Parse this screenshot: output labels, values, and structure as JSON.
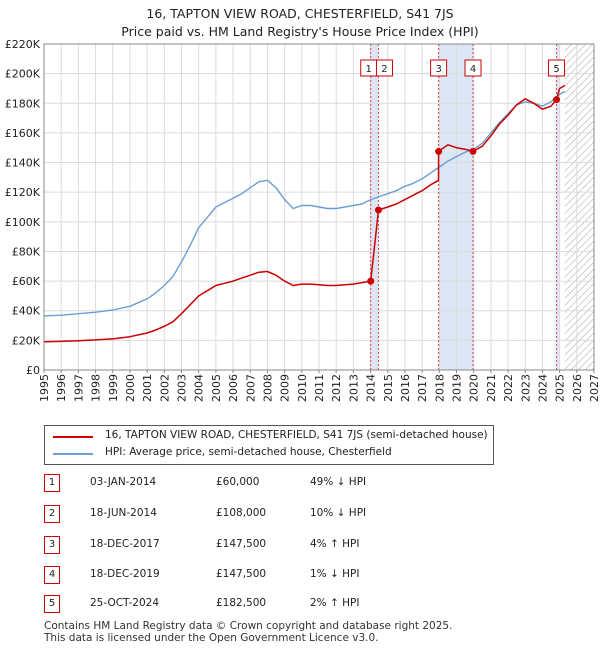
{
  "title_line1": "16, TAPTON VIEW ROAD, CHESTERFIELD, S41 7JS",
  "title_line2": "Price paid vs. HM Land Registry's House Price Index (HPI)",
  "chart_data": {
    "type": "line",
    "title": "16, TAPTON VIEW ROAD, CHESTERFIELD, S41 7JS — Price paid vs. HM Land Registry's House Price Index (HPI)",
    "xlim": [
      1995,
      2027
    ],
    "ylim": [
      0,
      220000
    ],
    "x_ticks": [
      1995,
      1996,
      1997,
      1998,
      1999,
      2000,
      2001,
      2002,
      2003,
      2004,
      2005,
      2006,
      2007,
      2008,
      2009,
      2010,
      2011,
      2012,
      2013,
      2014,
      2015,
      2016,
      2017,
      2018,
      2019,
      2020,
      2021,
      2022,
      2023,
      2024,
      2025,
      2026,
      2027
    ],
    "y_ticks": [
      0,
      20000,
      40000,
      60000,
      80000,
      100000,
      120000,
      140000,
      160000,
      180000,
      200000,
      220000
    ],
    "y_tick_labels": [
      "£0",
      "£20K",
      "£40K",
      "£60K",
      "£80K",
      "£100K",
      "£120K",
      "£140K",
      "£160K",
      "£180K",
      "£200K",
      "£220K"
    ],
    "grid": true,
    "colors": {
      "hpi": "#6a9ed4",
      "price": "#cc0000",
      "shade": "#dce6f5",
      "future_hatch": "#b0b0b0"
    },
    "shaded_ranges": [
      [
        2014.0,
        2014.46
      ],
      [
        2017.96,
        2019.96
      ],
      [
        2024.82,
        2025.0
      ]
    ],
    "future_from": 2025.3,
    "series": [
      {
        "name": "HPI: Average price, semi-detached house, Chesterfield",
        "points": [
          [
            1995.0,
            36500
          ],
          [
            1996.0,
            37000
          ],
          [
            1997.0,
            38000
          ],
          [
            1998.0,
            39000
          ],
          [
            1999.0,
            40500
          ],
          [
            2000.0,
            43000
          ],
          [
            2001.0,
            48000
          ],
          [
            2001.5,
            52000
          ],
          [
            2002.0,
            57000
          ],
          [
            2002.5,
            63000
          ],
          [
            2003.0,
            73000
          ],
          [
            2003.5,
            84000
          ],
          [
            2004.0,
            96000
          ],
          [
            2004.5,
            103000
          ],
          [
            2005.0,
            110000
          ],
          [
            2005.5,
            113000
          ],
          [
            2006.0,
            116000
          ],
          [
            2006.5,
            119000
          ],
          [
            2007.0,
            123000
          ],
          [
            2007.5,
            127000
          ],
          [
            2008.0,
            128000
          ],
          [
            2008.5,
            123000
          ],
          [
            2009.0,
            115000
          ],
          [
            2009.5,
            109000
          ],
          [
            2010.0,
            111000
          ],
          [
            2010.5,
            111000
          ],
          [
            2011.0,
            110000
          ],
          [
            2011.5,
            109000
          ],
          [
            2012.0,
            109000
          ],
          [
            2012.5,
            110000
          ],
          [
            2013.0,
            111000
          ],
          [
            2013.5,
            112000
          ],
          [
            2014.0,
            115000
          ],
          [
            2014.5,
            117000
          ],
          [
            2015.0,
            119000
          ],
          [
            2015.5,
            121000
          ],
          [
            2016.0,
            124000
          ],
          [
            2016.5,
            126000
          ],
          [
            2017.0,
            129000
          ],
          [
            2017.5,
            133000
          ],
          [
            2018.0,
            137000
          ],
          [
            2018.5,
            141000
          ],
          [
            2019.0,
            144000
          ],
          [
            2019.5,
            147000
          ],
          [
            2020.0,
            149000
          ],
          [
            2020.5,
            153000
          ],
          [
            2021.0,
            160000
          ],
          [
            2021.5,
            167000
          ],
          [
            2022.0,
            173000
          ],
          [
            2022.5,
            179000
          ],
          [
            2023.0,
            181000
          ],
          [
            2023.5,
            180000
          ],
          [
            2024.0,
            178000
          ],
          [
            2024.5,
            181000
          ],
          [
            2025.0,
            186000
          ],
          [
            2025.3,
            188000
          ]
        ]
      },
      {
        "name": "16, TAPTON VIEW ROAD, CHESTERFIELD, S41 7JS (semi-detached house)",
        "points": [
          [
            1995.0,
            19000
          ],
          [
            1996.0,
            19300
          ],
          [
            1997.0,
            19800
          ],
          [
            1998.0,
            20300
          ],
          [
            1999.0,
            21000
          ],
          [
            2000.0,
            22500
          ],
          [
            2001.0,
            25000
          ],
          [
            2001.5,
            27000
          ],
          [
            2002.0,
            29500
          ],
          [
            2002.5,
            32500
          ],
          [
            2003.0,
            38000
          ],
          [
            2003.5,
            44000
          ],
          [
            2004.0,
            50000
          ],
          [
            2004.5,
            53500
          ],
          [
            2005.0,
            57000
          ],
          [
            2005.5,
            58500
          ],
          [
            2006.0,
            60000
          ],
          [
            2006.5,
            62000
          ],
          [
            2007.0,
            64000
          ],
          [
            2007.5,
            66000
          ],
          [
            2008.0,
            66500
          ],
          [
            2008.5,
            64000
          ],
          [
            2009.0,
            60000
          ],
          [
            2009.5,
            57000
          ],
          [
            2010.0,
            58000
          ],
          [
            2010.5,
            58000
          ],
          [
            2011.0,
            57500
          ],
          [
            2011.5,
            57000
          ],
          [
            2012.0,
            57000
          ],
          [
            2012.5,
            57500
          ],
          [
            2013.0,
            58000
          ],
          [
            2013.5,
            59000
          ],
          [
            2014.01,
            60000
          ],
          [
            2014.46,
            108000
          ],
          [
            2015.0,
            110000
          ],
          [
            2015.5,
            112000
          ],
          [
            2016.0,
            115000
          ],
          [
            2016.5,
            118000
          ],
          [
            2017.0,
            121000
          ],
          [
            2017.5,
            125000
          ],
          [
            2017.95,
            128000
          ],
          [
            2017.96,
            147500
          ],
          [
            2018.5,
            152000
          ],
          [
            2019.0,
            150000
          ],
          [
            2019.5,
            149000
          ],
          [
            2019.96,
            147500
          ],
          [
            2020.5,
            151000
          ],
          [
            2021.0,
            158000
          ],
          [
            2021.5,
            166000
          ],
          [
            2022.0,
            172000
          ],
          [
            2022.5,
            179000
          ],
          [
            2023.0,
            183000
          ],
          [
            2023.5,
            180000
          ],
          [
            2024.0,
            176000
          ],
          [
            2024.5,
            178000
          ],
          [
            2024.82,
            182500
          ],
          [
            2025.0,
            190000
          ],
          [
            2025.3,
            192000
          ]
        ]
      }
    ],
    "markers": [
      {
        "label": "1",
        "x": 2014.01,
        "y": 60000
      },
      {
        "label": "2",
        "x": 2014.46,
        "y": 108000
      },
      {
        "label": "3",
        "x": 2017.96,
        "y": 147500
      },
      {
        "label": "4",
        "x": 2019.96,
        "y": 147500
      },
      {
        "label": "5",
        "x": 2024.82,
        "y": 182500
      }
    ]
  },
  "legend": {
    "price_label": "16, TAPTON VIEW ROAD, CHESTERFIELD, S41 7JS (semi-detached house)",
    "hpi_label": "HPI: Average price, semi-detached house, Chesterfield"
  },
  "sales": [
    {
      "num": "1",
      "date": "03-JAN-2014",
      "price": "£60,000",
      "hpi": "49% ↓ HPI"
    },
    {
      "num": "2",
      "date": "18-JUN-2014",
      "price": "£108,000",
      "hpi": "10% ↓ HPI"
    },
    {
      "num": "3",
      "date": "18-DEC-2017",
      "price": "£147,500",
      "hpi": "4% ↑ HPI"
    },
    {
      "num": "4",
      "date": "18-DEC-2019",
      "price": "£147,500",
      "hpi": "1% ↓ HPI"
    },
    {
      "num": "5",
      "date": "25-OCT-2024",
      "price": "£182,500",
      "hpi": "2% ↑ HPI"
    }
  ],
  "footer_line1": "Contains HM Land Registry data © Crown copyright and database right 2025.",
  "footer_line2": "This data is licensed under the Open Government Licence v3.0."
}
